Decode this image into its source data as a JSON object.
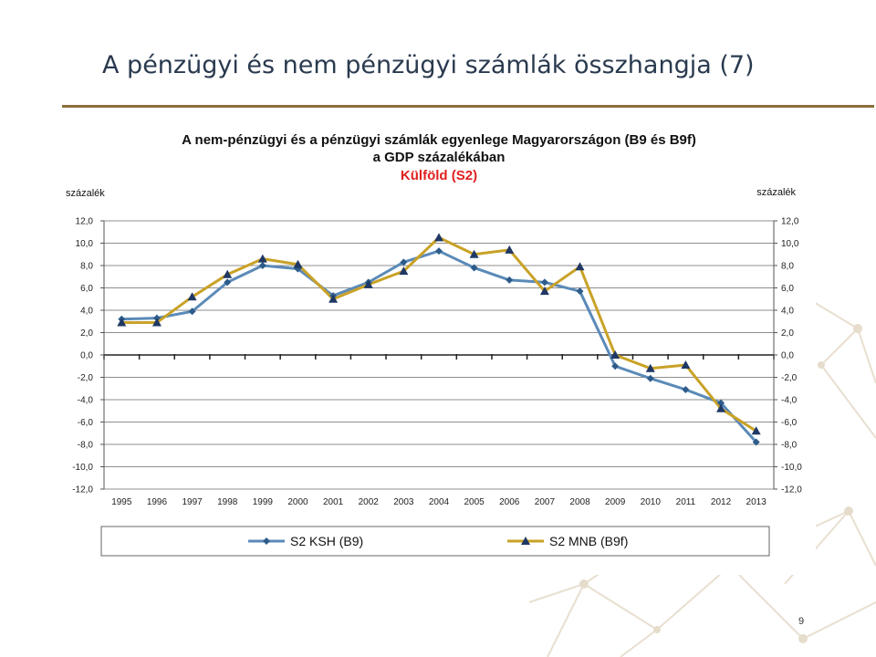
{
  "slide": {
    "title": "A pénzügyi és nem pénzügyi számlák összhangja (7)",
    "page_number": "9"
  },
  "colors": {
    "title_rule": "#8a6e3b",
    "ksh": "#5b8ab8",
    "mnb": "#c9a227",
    "marker_ksh": "#2e5c8a",
    "marker_mnb": "#1f3864",
    "subtitle_red": "#e02020"
  },
  "chart_data": {
    "type": "line",
    "title_line1": "A nem-pénzügyi és a pénzügyi számlák egyenlege Magyarországon (B9 és B9f)",
    "title_line2": "a GDP százalékában",
    "subtitle": "Külföld (S2)",
    "ylabel_left": "százalék",
    "ylabel_right": "százalék",
    "ylim": [
      -12,
      12
    ],
    "yticks": [
      "12,0",
      "10,0",
      "8,0",
      "6,0",
      "4,0",
      "2,0",
      "0,0",
      "-2,0",
      "-4,0",
      "-6,0",
      "-8,0",
      "-10,0",
      "-12,0"
    ],
    "ytick_values": [
      12,
      10,
      8,
      6,
      4,
      2,
      0,
      -2,
      -4,
      -6,
      -8,
      -10,
      -12
    ],
    "grid": true,
    "legend_position": "bottom",
    "categories": [
      "1995",
      "1996",
      "1997",
      "1998",
      "1999",
      "2000",
      "2001",
      "2002",
      "2003",
      "2004",
      "2005",
      "2006",
      "2007",
      "2008",
      "2009",
      "2010",
      "2011",
      "2012",
      "2013"
    ],
    "series": [
      {
        "name": "S2 KSH (B9)",
        "marker": "diamond",
        "values": [
          3.2,
          3.3,
          3.9,
          6.5,
          8.0,
          7.7,
          5.3,
          6.5,
          8.3,
          9.3,
          7.8,
          6.7,
          6.5,
          5.7,
          -1.0,
          -2.1,
          -3.1,
          -4.3,
          -7.8
        ]
      },
      {
        "name": "S2 MNB (B9f)",
        "marker": "triangle",
        "values": [
          2.9,
          2.9,
          5.2,
          7.2,
          8.6,
          8.1,
          5.0,
          6.3,
          7.5,
          10.5,
          9.0,
          9.4,
          5.7,
          7.9,
          0.0,
          -1.2,
          -0.9,
          -4.8,
          -6.8
        ]
      }
    ]
  }
}
